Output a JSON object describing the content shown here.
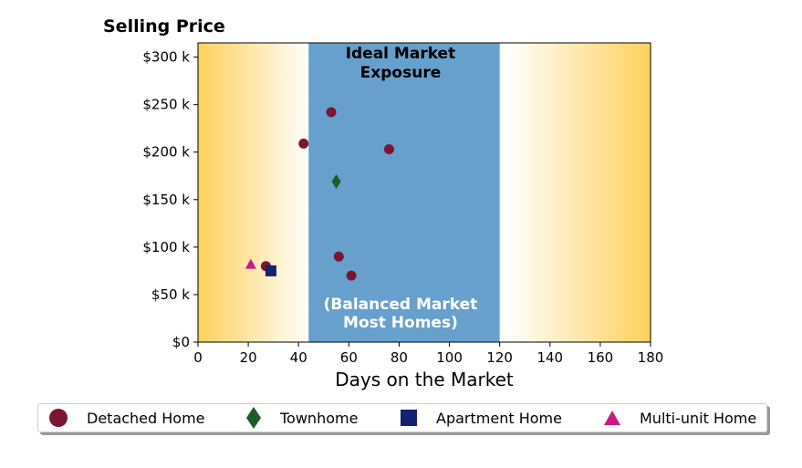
{
  "chart_data": {
    "type": "scatter",
    "title": "Selling Price",
    "xlabel": "Days on the Market",
    "ylabel": "",
    "xlim": [
      0,
      180
    ],
    "ylim": [
      0,
      315000
    ],
    "x_ticks": [
      0,
      20,
      40,
      60,
      80,
      100,
      120,
      140,
      160,
      180
    ],
    "x_tick_labels": [
      "0",
      "20",
      "40",
      "60",
      "80",
      "100",
      "120",
      "140",
      "160",
      "180"
    ],
    "y_ticks": [
      0,
      50000,
      100000,
      150000,
      200000,
      250000,
      300000
    ],
    "y_tick_labels": [
      "$0",
      "$50 k",
      "$100 k",
      "$150 k",
      "$200 k",
      "$250 k",
      "$300 k"
    ],
    "grid": false,
    "legend_position": "bottom",
    "band": {
      "x_start": 44,
      "x_end": 120,
      "color": "#67a0cc",
      "label_top": [
        "Ideal Market",
        "Exposure"
      ],
      "label_bottom": [
        "(Balanced Market",
        "Most Homes)"
      ]
    },
    "background_gradient": {
      "edge_color": "#ffd15c",
      "center_color": "#ffffff"
    },
    "series": [
      {
        "name": "Detached Home",
        "marker": "circle",
        "color": "#7b1533",
        "points": [
          [
            27,
            80000
          ],
          [
            42,
            209000
          ],
          [
            53,
            242000
          ],
          [
            56,
            90000
          ],
          [
            61,
            70000
          ],
          [
            76,
            203000
          ]
        ]
      },
      {
        "name": "Townhome",
        "marker": "diamond",
        "color": "#1f5a2c",
        "points": [
          [
            55,
            169000
          ]
        ]
      },
      {
        "name": "Apartment Home",
        "marker": "square",
        "color": "#13216e",
        "points": [
          [
            29,
            75000
          ]
        ]
      },
      {
        "name": "Multi-unit Home",
        "marker": "triangle",
        "color": "#cc1a85",
        "points": [
          [
            21,
            82000
          ]
        ]
      }
    ]
  }
}
